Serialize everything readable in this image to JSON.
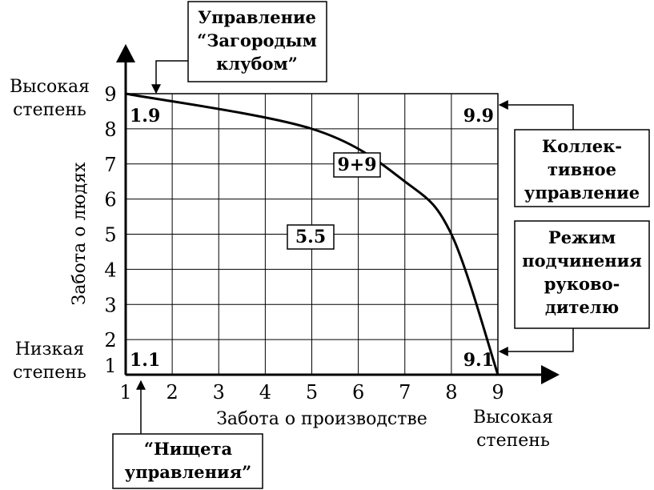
{
  "chart_data": {
    "type": "grid",
    "x_ticks": [
      "1",
      "2",
      "3",
      "4",
      "5",
      "6",
      "7",
      "8",
      "9"
    ],
    "y_ticks": [
      "1",
      "2",
      "3",
      "4",
      "5",
      "6",
      "7",
      "8",
      "9"
    ],
    "xlabel": "Забота о производстве",
    "ylabel": "Забота о людях",
    "x_high": [
      "Высокая",
      "степень"
    ],
    "y_high": [
      "Высокая",
      "степень"
    ],
    "y_low": [
      "Низкая",
      "степень"
    ],
    "cells": [
      {
        "label": "1.9",
        "x": 1,
        "y": 9
      },
      {
        "label": "9.9",
        "x": 9,
        "y": 9
      },
      {
        "label": "1.1",
        "x": 1,
        "y": 1
      },
      {
        "label": "9.1",
        "x": 9,
        "y": 1
      },
      {
        "label": "5.5",
        "x": 5,
        "y": 5
      },
      {
        "label": "9+9",
        "x": 6,
        "y": 7
      }
    ],
    "curve": [
      {
        "x": 1,
        "y": 9
      },
      {
        "x": 5,
        "y": 8
      },
      {
        "x": 7,
        "y": 6.5
      },
      {
        "x": 8,
        "y": 5
      },
      {
        "x": 9,
        "y": 1
      }
    ]
  },
  "callouts": {
    "country_club": [
      "Управление",
      "“Загородым",
      "клубом”"
    ],
    "team": [
      "Коллек-",
      "тивное",
      "управление"
    ],
    "authority": [
      "Режим",
      "подчинения",
      "руково-",
      "дителю"
    ],
    "impoverished": [
      "“Нищета",
      "управления”"
    ]
  }
}
